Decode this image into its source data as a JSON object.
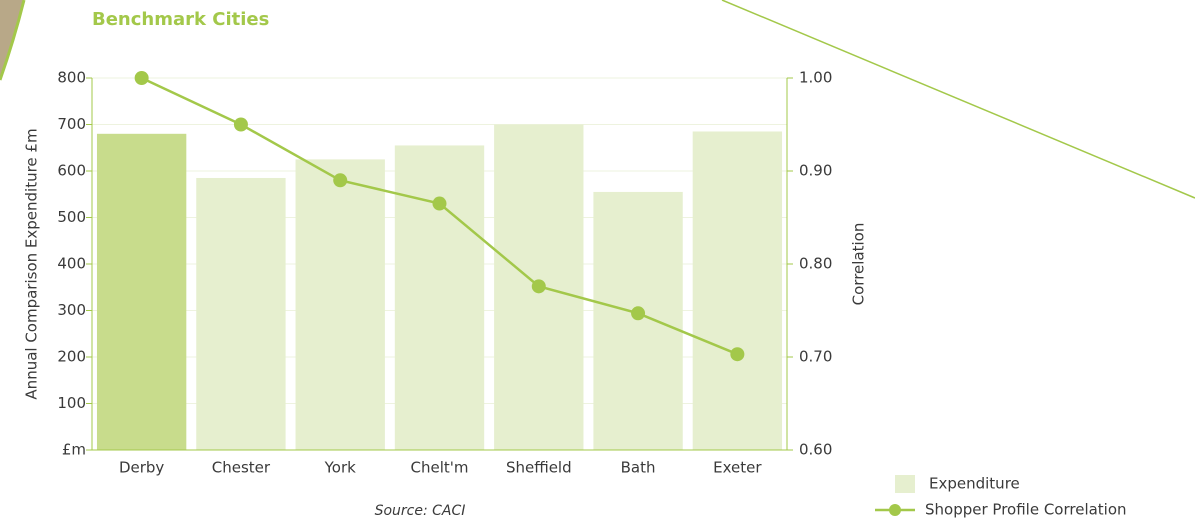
{
  "chart_data": {
    "type": "bar-line",
    "title": "Benchmark Cities",
    "source": "Source: CACI",
    "y_label": "Annual Comparison Expenditure £m",
    "y2_label": "Correlation",
    "categories": [
      "Derby",
      "Chester",
      "York",
      "Chelt'm",
      "Sheffield",
      "Bath",
      "Exeter"
    ],
    "series": [
      {
        "name": "Expenditure",
        "type": "bar",
        "color": "#e6efcf",
        "colors": [
          "#c8dc8c",
          "#e6efcf",
          "#e6efcf",
          "#e6efcf",
          "#e6efcf",
          "#e6efcf",
          "#e6efcf"
        ],
        "values": [
          680,
          585,
          625,
          655,
          700,
          555,
          685
        ]
      },
      {
        "name": "Shopper Profile Correlation",
        "type": "line",
        "axis": "y2",
        "color": "#a3c84a",
        "values": [
          1.0,
          0.95,
          0.89,
          0.865,
          0.776,
          0.747,
          0.703
        ]
      }
    ],
    "ylim": [
      0,
      800
    ],
    "yticks": [
      {
        "value": 0,
        "label": "£m"
      },
      100,
      200,
      300,
      400,
      500,
      600,
      700,
      800
    ],
    "y2lim": [
      0.6,
      1.0
    ],
    "y2ticks": [
      {
        "value": 0.6,
        "label": "0.60"
      },
      {
        "value": 0.7,
        "label": "0.70"
      },
      {
        "value": 0.8,
        "label": "0.80"
      },
      {
        "value": 0.9,
        "label": "0.90"
      },
      {
        "value": 1.0,
        "label": "1.00"
      }
    ],
    "grid": true,
    "legend": "bottom-right"
  }
}
